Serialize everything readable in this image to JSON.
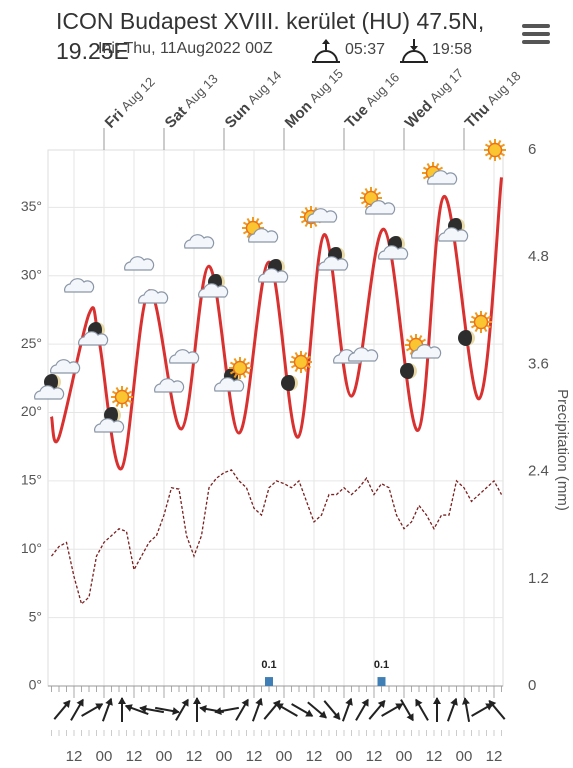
{
  "header": {
    "title": "ICON Budapest XVIII. kerület (HU) 47.5N, 19.25E",
    "init": "Init Thu, 11Aug2022 00Z",
    "sunrise": "05:37",
    "sunset": "19:58"
  },
  "chart_data": {
    "type": "meteogram",
    "y2_label": "Precipitation (mm)",
    "xlim": [
      1.6,
      183.6
    ],
    "ylim": [
      0,
      39.2
    ],
    "yticks": [
      {
        "value": 0,
        "label": "0°"
      },
      {
        "value": 5,
        "label": "5°"
      },
      {
        "value": 10,
        "label": "10°"
      },
      {
        "value": 15,
        "label": "15°"
      },
      {
        "value": 20,
        "label": "20°"
      },
      {
        "value": 25,
        "label": "25°"
      },
      {
        "value": 30,
        "label": "30°"
      },
      {
        "value": 35,
        "label": "35°"
      }
    ],
    "y2lim": [
      0,
      6
    ],
    "y2ticks": [
      0,
      1.2,
      2.4,
      3.6,
      4.8,
      6
    ],
    "xticks": [
      {
        "value": 12,
        "label": "12"
      },
      {
        "value": 24,
        "label": "00"
      },
      {
        "value": 36,
        "label": "12"
      },
      {
        "value": 48,
        "label": "00"
      },
      {
        "value": 60,
        "label": "12"
      },
      {
        "value": 72,
        "label": "00"
      },
      {
        "value": 84,
        "label": "12"
      },
      {
        "value": 96,
        "label": "00"
      },
      {
        "value": 108,
        "label": "12"
      },
      {
        "value": 120,
        "label": "00"
      },
      {
        "value": 132,
        "label": "12"
      },
      {
        "value": 144,
        "label": "00"
      },
      {
        "value": 156,
        "label": "12"
      },
      {
        "value": 168,
        "label": "00"
      },
      {
        "value": 180,
        "label": "12"
      }
    ],
    "days": [
      {
        "x": 24,
        "day": "Fri",
        "date": "Aug 12"
      },
      {
        "x": 48,
        "day": "Sat",
        "date": "Aug 13"
      },
      {
        "x": 72,
        "day": "Sun",
        "date": "Aug 14"
      },
      {
        "x": 96,
        "day": "Mon",
        "date": "Aug 15"
      },
      {
        "x": 120,
        "day": "Tue",
        "date": "Aug 16"
      },
      {
        "x": 144,
        "day": "Wed",
        "date": "Aug 17"
      },
      {
        "x": 168,
        "day": "Thu",
        "date": "Aug 18"
      }
    ],
    "grid": true,
    "series": [
      {
        "name": "Temperature",
        "color": "#d93030",
        "x": [
          3,
          6,
          18,
          22,
          31,
          42,
          55,
          66,
          78,
          90,
          101.6,
          112,
          123,
          136,
          149.6,
          160,
          174,
          183
        ],
        "values": [
          19.7,
          18.2,
          27.2,
          25.3,
          15.9,
          28.9,
          18.8,
          30.7,
          18.5,
          31.0,
          18.2,
          33.0,
          21.2,
          33.4,
          18.7,
          35.8,
          21.0,
          37.2
        ]
      },
      {
        "name": "Dew point",
        "color": "#7a2020",
        "x": [
          3,
          6,
          9,
          12,
          15,
          18,
          21,
          24,
          27,
          30,
          33,
          36,
          39,
          42,
          45,
          48,
          51,
          54,
          57,
          60,
          63,
          66,
          69,
          72,
          75,
          78,
          81,
          84,
          87,
          90,
          93,
          96,
          99,
          102,
          105,
          108,
          111,
          114,
          117,
          120,
          123,
          126,
          129,
          132,
          135,
          138,
          141,
          144,
          147,
          150,
          153,
          156,
          159,
          162,
          165,
          168,
          171,
          174,
          177,
          180,
          183
        ],
        "values": [
          9.5,
          10.2,
          10.5,
          8,
          6,
          6.5,
          9.5,
          10.5,
          11,
          11.5,
          11.3,
          8.5,
          9.5,
          10.5,
          11,
          12.5,
          14.5,
          14.4,
          11,
          9.5,
          11,
          14.5,
          15.2,
          15.6,
          15.8,
          15,
          14.5,
          13,
          12.5,
          14.5,
          15,
          14.8,
          14.5,
          15,
          13.5,
          12,
          12.5,
          14,
          14,
          14.5,
          14,
          14.5,
          15.2,
          14,
          14.8,
          14.5,
          12.5,
          11.5,
          12,
          13.2,
          12.5,
          11.5,
          12.5,
          12.5,
          15,
          14.5,
          13.5,
          14,
          14.5,
          15,
          14
        ]
      },
      {
        "name": "Precipitation",
        "color": "#3f7fb5",
        "axis": "y2",
        "x": [
          90,
          135
        ],
        "values": [
          0.1,
          0.1
        ],
        "value_labels": [
          "0.1",
          "0.1"
        ]
      }
    ]
  }
}
